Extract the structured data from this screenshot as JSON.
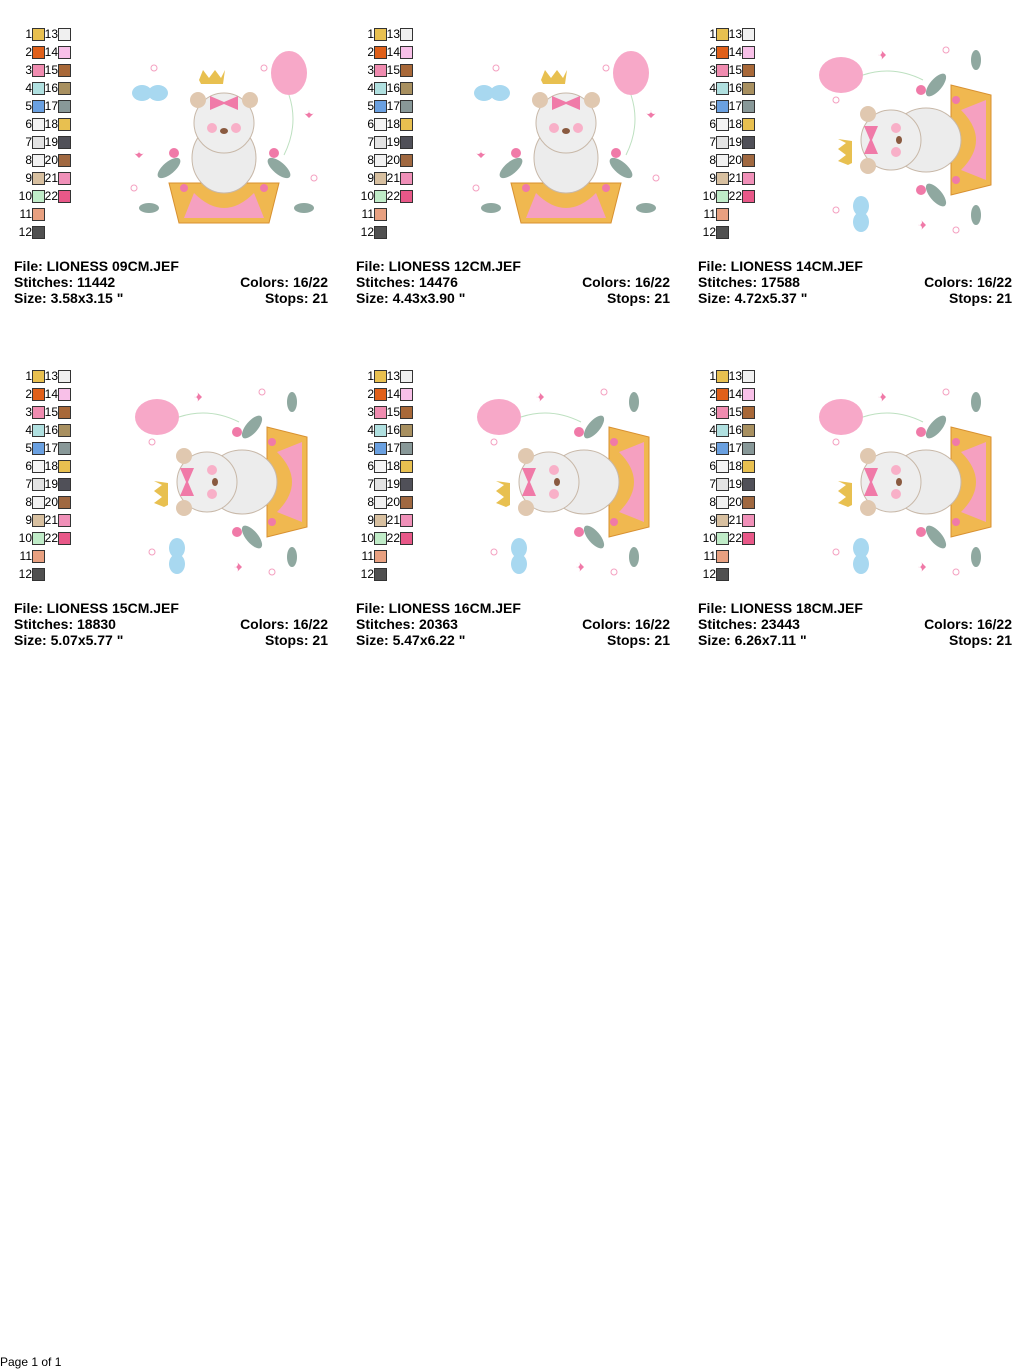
{
  "thread_colors": [
    {
      "n": "1",
      "color": "#e8c050"
    },
    {
      "n": "2",
      "color": "#e0601a"
    },
    {
      "n": "3",
      "color": "#f08cb0"
    },
    {
      "n": "4",
      "color": "#b0e0e0"
    },
    {
      "n": "5",
      "color": "#6aa0e0"
    },
    {
      "n": "6",
      "color": "#f4f4f4"
    },
    {
      "n": "7",
      "color": "#e4e4e4"
    },
    {
      "n": "8",
      "color": "#f2f2f2"
    },
    {
      "n": "9",
      "color": "#d8c0a0"
    },
    {
      "n": "10",
      "color": "#c0ecc8"
    },
    {
      "n": "11",
      "color": "#e8a080"
    },
    {
      "n": "12",
      "color": "#505050"
    },
    {
      "n": "13",
      "color": "#f0f0f0"
    },
    {
      "n": "14",
      "color": "#f8c0e8"
    },
    {
      "n": "15",
      "color": "#a86838"
    },
    {
      "n": "16",
      "color": "#a89060"
    },
    {
      "n": "17",
      "color": "#889898"
    },
    {
      "n": "18",
      "color": "#e8c050"
    },
    {
      "n": "19",
      "color": "#505058"
    },
    {
      "n": "20",
      "color": "#a06840"
    },
    {
      "n": "21",
      "color": "#f090b8"
    },
    {
      "n": "22",
      "color": "#e85888"
    }
  ],
  "designs": [
    {
      "file": "File: LIONESS 09CM.JEF",
      "stitches": "Stitches: 11442",
      "size": "Size: 3.58x3.15 \"",
      "colors": "Colors: 16/22",
      "stops": "Stops: 21",
      "orientation": "upright"
    },
    {
      "file": "File: LIONESS 12CM.JEF",
      "stitches": "Stitches: 14476",
      "size": "Size: 4.43x3.90 \"",
      "colors": "Colors: 16/22",
      "stops": "Stops: 21",
      "orientation": "upright"
    },
    {
      "file": "File: LIONESS 14CM.JEF",
      "stitches": "Stitches: 17588",
      "size": "Size: 4.72x5.37 \"",
      "colors": "Colors: 16/22",
      "stops": "Stops: 21",
      "orientation": "rotated"
    },
    {
      "file": "File: LIONESS 15CM.JEF",
      "stitches": "Stitches: 18830",
      "size": "Size: 5.07x5.77 \"",
      "colors": "Colors: 16/22",
      "stops": "Stops: 21",
      "orientation": "rotated"
    },
    {
      "file": "File: LIONESS 16CM.JEF",
      "stitches": "Stitches: 20363",
      "size": "Size: 5.47x6.22 \"",
      "colors": "Colors: 16/22",
      "stops": "Stops: 21",
      "orientation": "rotated"
    },
    {
      "file": "File: LIONESS 18CM.JEF",
      "stitches": "Stitches: 23443",
      "size": "Size: 6.26x7.11 \"",
      "colors": "Colors: 16/22",
      "stops": "Stops: 21",
      "orientation": "rotated"
    }
  ],
  "footer": {
    "page": "Page 1 of 1"
  }
}
